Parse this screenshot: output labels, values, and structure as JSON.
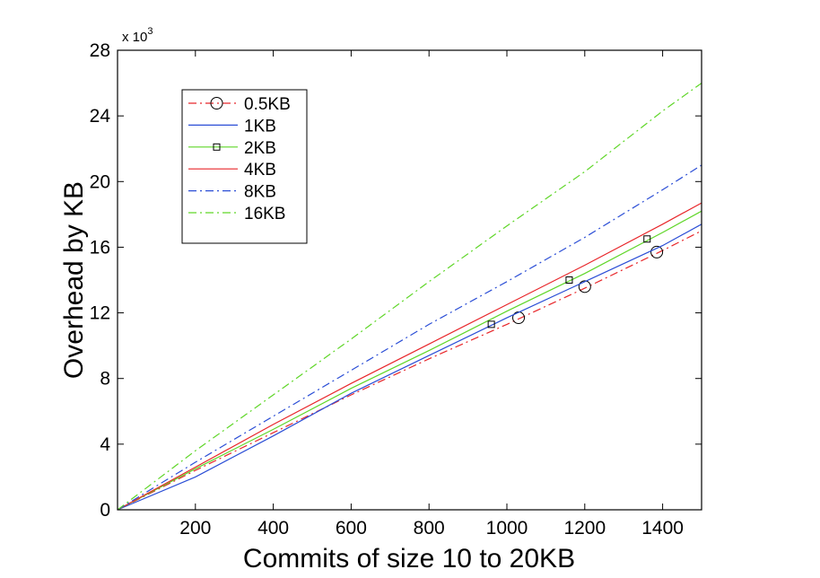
{
  "chart_data": {
    "type": "line",
    "xlabel": "Commits of size 10 to 20KB",
    "ylabel": "Overhead by KB",
    "y_multiplier": {
      "base": "x 10",
      "exponent": "3"
    },
    "xlim": [
      0,
      1500
    ],
    "ylim": [
      0,
      28
    ],
    "xticks": [
      200,
      400,
      600,
      800,
      1000,
      1200,
      1400
    ],
    "yticks": [
      0,
      4,
      8,
      12,
      16,
      20,
      24,
      28
    ],
    "legend_position": "top-left",
    "grid": false,
    "series": [
      {
        "name": "0.5KB",
        "color": "#e8262a",
        "dash": "dashdot",
        "marker": "circle",
        "x": [
          0,
          200,
          400,
          600,
          800,
          1000,
          1200,
          1400,
          1500
        ],
        "y": [
          0,
          2.4,
          4.7,
          7.0,
          9.2,
          11.3,
          13.5,
          15.8,
          17.0
        ],
        "marker_x": [
          1030,
          1200,
          1385
        ],
        "marker_y": [
          11.7,
          13.6,
          15.7
        ]
      },
      {
        "name": "1KB",
        "color": "#2b4ed6",
        "dash": "solid",
        "marker": "none",
        "x": [
          0,
          200,
          400,
          600,
          800,
          1000,
          1200,
          1400,
          1500
        ],
        "y": [
          0,
          2.0,
          4.5,
          7.1,
          9.4,
          11.7,
          13.9,
          16.1,
          17.4
        ],
        "marker_x": [],
        "marker_y": []
      },
      {
        "name": "2KB",
        "color": "#5fd628",
        "dash": "solid",
        "marker": "square",
        "x": [
          0,
          200,
          400,
          600,
          800,
          1000,
          1200,
          1400,
          1500
        ],
        "y": [
          0,
          2.5,
          4.9,
          7.4,
          9.7,
          12.1,
          14.4,
          16.9,
          18.2
        ],
        "marker_x": [
          960,
          1160,
          1360
        ],
        "marker_y": [
          11.3,
          14.0,
          16.5
        ]
      },
      {
        "name": "4KB",
        "color": "#e8262a",
        "dash": "solid",
        "marker": "none",
        "x": [
          0,
          200,
          400,
          600,
          800,
          1000,
          1200,
          1400,
          1500
        ],
        "y": [
          0,
          2.6,
          5.2,
          7.7,
          10.1,
          12.5,
          14.9,
          17.4,
          18.7
        ],
        "marker_x": [],
        "marker_y": []
      },
      {
        "name": "8KB",
        "color": "#2b4ed6",
        "dash": "dashdot",
        "marker": "none",
        "x": [
          0,
          200,
          400,
          600,
          800,
          1000,
          1200,
          1400,
          1500
        ],
        "y": [
          0,
          2.9,
          5.7,
          8.5,
          11.3,
          13.9,
          16.6,
          19.5,
          21.0
        ],
        "marker_x": [],
        "marker_y": []
      },
      {
        "name": "16KB",
        "color": "#5fd628",
        "dash": "dashdot",
        "marker": "none",
        "x": [
          0,
          200,
          400,
          600,
          800,
          1000,
          1200,
          1400,
          1500
        ],
        "y": [
          0,
          3.6,
          7.0,
          10.4,
          13.9,
          17.3,
          20.6,
          24.3,
          26.0
        ],
        "marker_x": [],
        "marker_y": []
      }
    ]
  }
}
